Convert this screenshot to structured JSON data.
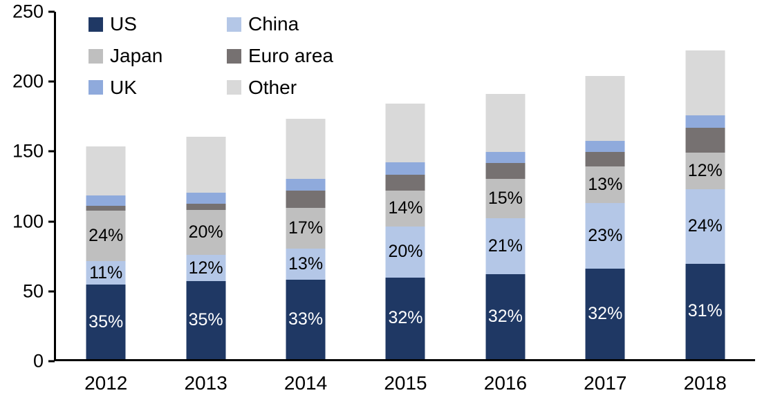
{
  "chart_data": {
    "type": "bar",
    "stacked": true,
    "title": "",
    "xlabel": "",
    "ylabel": "",
    "background": "#FFFFFF",
    "categories": [
      "2012",
      "2013",
      "2014",
      "2015",
      "2016",
      "2017",
      "2018"
    ],
    "totals": [
      153,
      160,
      173,
      184,
      191,
      204,
      222
    ],
    "y_axis": {
      "min": 0,
      "max": 250,
      "tick_interval": 50,
      "ticks": [
        "0",
        "50",
        "100",
        "150",
        "200",
        "250"
      ]
    },
    "grid": false,
    "series": [
      {
        "name": "US",
        "color": "#1F3864",
        "label_color": "#FFFFFF",
        "percentages": [
          35,
          35,
          33,
          32,
          32,
          32,
          31
        ],
        "values": [
          53.6,
          56.0,
          57.1,
          58.9,
          61.1,
          65.3,
          68.8
        ],
        "labels": [
          "35%",
          "35%",
          "33%",
          "32%",
          "32%",
          "32%",
          "31%"
        ]
      },
      {
        "name": "China",
        "color": "#B4C7E7",
        "label_color": "#000000",
        "percentages": [
          11,
          12,
          13,
          20,
          21,
          23,
          24
        ],
        "values": [
          16.8,
          19.2,
          22.5,
          36.8,
          40.1,
          46.9,
          53.3
        ],
        "labels": [
          "11%",
          "12%",
          "13%",
          "20%",
          "21%",
          "23%",
          "24%"
        ]
      },
      {
        "name": "Japan",
        "color": "#BFBFBF",
        "label_color": "#000000",
        "percentages": [
          24,
          20,
          17,
          14,
          15,
          13,
          12
        ],
        "values": [
          36.7,
          32.0,
          29.4,
          25.8,
          28.7,
          26.5,
          26.6
        ],
        "labels": [
          "24%",
          "20%",
          "17%",
          "14%",
          "15%",
          "13%",
          "12%"
        ]
      },
      {
        "name": "Euro area",
        "color": "#767171",
        "label_color": "#000000",
        "percentages": [
          2,
          3,
          7,
          6,
          6,
          5,
          8
        ],
        "values": [
          3.1,
          4.8,
          12.1,
          11.0,
          11.5,
          10.2,
          17.8
        ],
        "labels": null
      },
      {
        "name": "UK",
        "color": "#8FAADC",
        "label_color": "#000000",
        "percentages": [
          5,
          5,
          5,
          5,
          4,
          4,
          4
        ],
        "values": [
          7.7,
          8.0,
          8.7,
          9.2,
          7.6,
          8.2,
          8.9
        ],
        "labels": null
      },
      {
        "name": "Other",
        "color": "#D9D9D9",
        "label_color": "#000000",
        "percentages": [
          23,
          25,
          25,
          23,
          22,
          23,
          21
        ],
        "values": [
          35.2,
          40.0,
          43.3,
          42.3,
          42.0,
          46.9,
          46.6
        ],
        "labels": null
      }
    ],
    "legend": {
      "position": "top-left",
      "columns": 2,
      "order": [
        "US",
        "China",
        "Japan",
        "Euro area",
        "UK",
        "Other"
      ]
    }
  }
}
